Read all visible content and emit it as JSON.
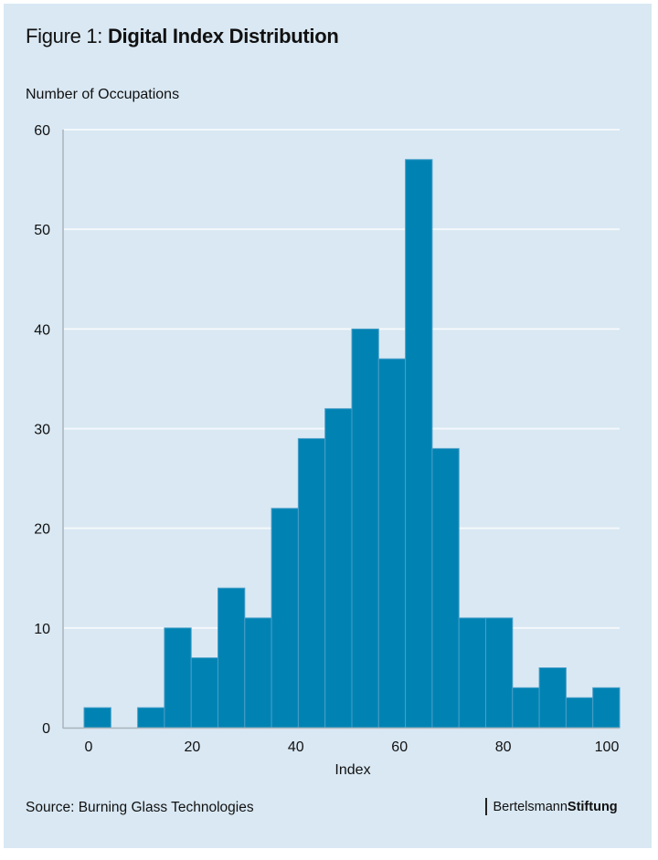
{
  "figure": {
    "title_prefix": "Figure 1: ",
    "title_main": "Digital Index Distribution",
    "source": "Source: Burning Glass Technologies",
    "logo": {
      "light": "Bertelsmann",
      "bold": "Stiftung"
    }
  },
  "colors": {
    "background": "#d9e8f3",
    "bar": "#0083b3",
    "bar_edge": "#4a9ec8",
    "grid": "#f4f8fb",
    "axis": "#a9b4bc"
  },
  "chart_data": {
    "type": "bar",
    "subtype": "histogram",
    "title": "Digital Index Distribution",
    "xlabel": "Index",
    "ylabel": "Number of Occupations",
    "bin_width": 5,
    "bins": [
      {
        "start": 0,
        "end": 5,
        "count": 2
      },
      {
        "start": 5,
        "end": 10,
        "count": 0
      },
      {
        "start": 10,
        "end": 15,
        "count": 2
      },
      {
        "start": 15,
        "end": 20,
        "count": 10
      },
      {
        "start": 20,
        "end": 25,
        "count": 7
      },
      {
        "start": 25,
        "end": 30,
        "count": 14
      },
      {
        "start": 30,
        "end": 35,
        "count": 11
      },
      {
        "start": 35,
        "end": 40,
        "count": 22
      },
      {
        "start": 40,
        "end": 45,
        "count": 29
      },
      {
        "start": 45,
        "end": 50,
        "count": 32
      },
      {
        "start": 50,
        "end": 55,
        "count": 40
      },
      {
        "start": 55,
        "end": 60,
        "count": 37
      },
      {
        "start": 60,
        "end": 65,
        "count": 57
      },
      {
        "start": 65,
        "end": 70,
        "count": 28
      },
      {
        "start": 70,
        "end": 75,
        "count": 11
      },
      {
        "start": 75,
        "end": 80,
        "count": 11
      },
      {
        "start": 80,
        "end": 85,
        "count": 4
      },
      {
        "start": 85,
        "end": 90,
        "count": 6
      },
      {
        "start": 90,
        "end": 95,
        "count": 3
      },
      {
        "start": 95,
        "end": 100,
        "count": 4
      }
    ],
    "xlim": [
      0,
      100
    ],
    "ylim": [
      0,
      60
    ],
    "xticks": [
      0,
      20,
      40,
      60,
      80,
      100
    ],
    "yticks": [
      0,
      10,
      20,
      30,
      40,
      50,
      60
    ],
    "grid": "horizontal",
    "legend": "none"
  }
}
